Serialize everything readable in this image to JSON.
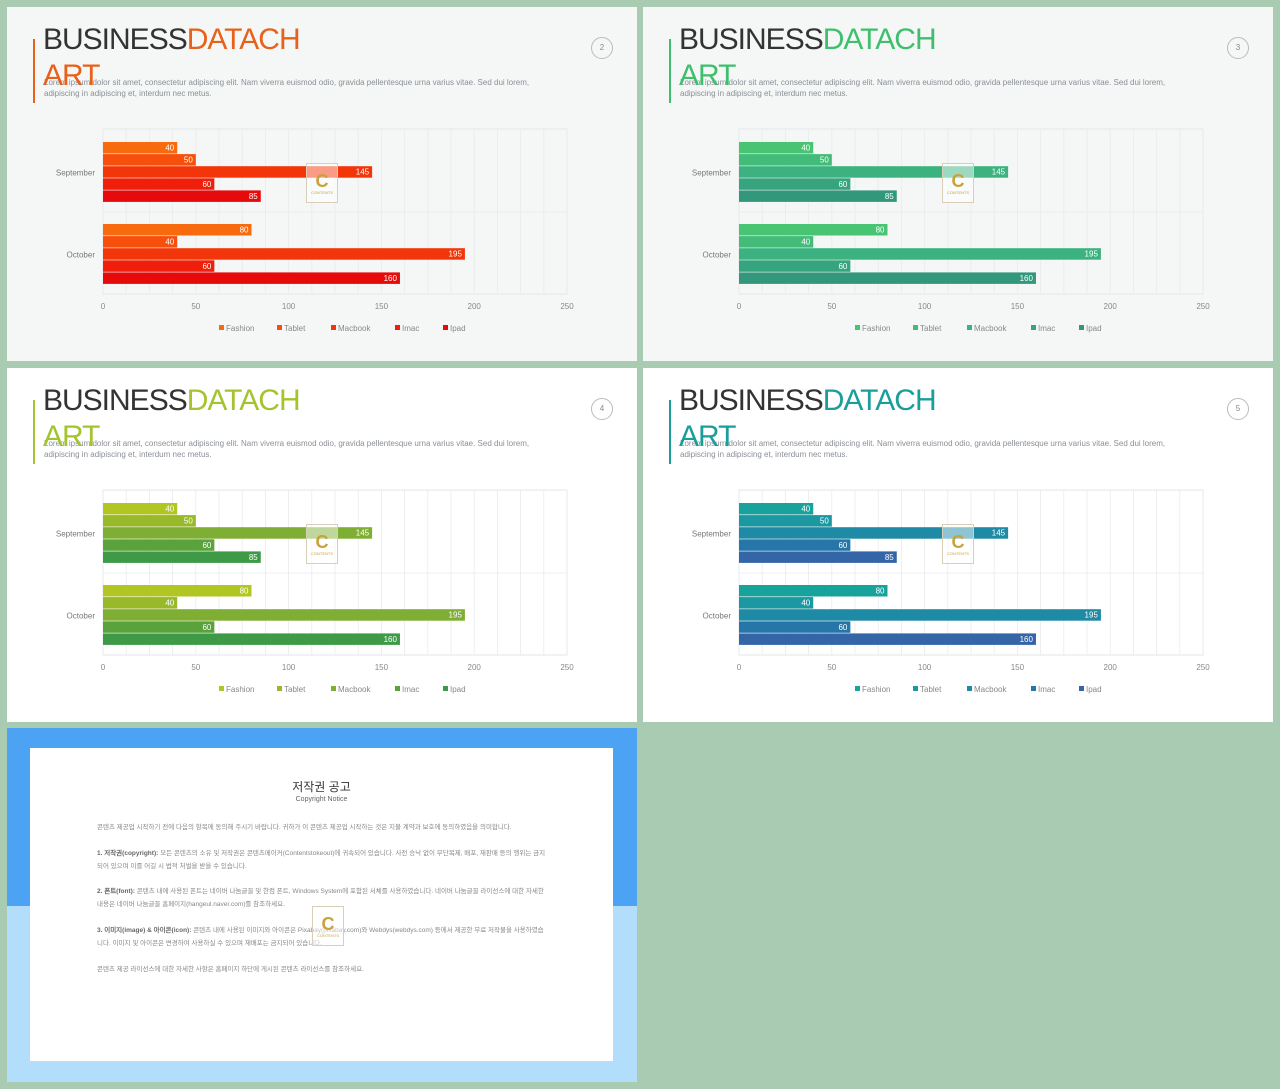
{
  "header_common": {
    "title_part1": "BUSINESS",
    "title_part2": "DATACH",
    "title_line2": "ART",
    "description": "Lorem ipsum dolor sit amet, consectetur adipiscing elit. Nam viverra euismod odio, gravida pellentesque urna varius vitae. Sed dui lorem, adipiscing in adipiscing et, interdum nec metus."
  },
  "watermark": {
    "letter": "C",
    "text": "CONTENTS"
  },
  "slides": [
    {
      "page": "2",
      "accent": "#e8611a",
      "colors": [
        "#f86a0e",
        "#f7500c",
        "#f2360a",
        "#f01f0b",
        "#e70a0a"
      ]
    },
    {
      "page": "3",
      "accent": "#3fbf6e",
      "colors": [
        "#49c472",
        "#43bc7a",
        "#3bb27f",
        "#36a57f",
        "#32977b"
      ]
    },
    {
      "page": "4",
      "accent": "#a3c42e",
      "colors": [
        "#b1c622",
        "#98b92a",
        "#7fae34",
        "#5aa23b",
        "#3e9a46"
      ]
    },
    {
      "page": "5",
      "accent": "#1a9e9a",
      "colors": [
        "#17a39c",
        "#1b98a1",
        "#1f8aa5",
        "#2776a9",
        "#3465a7"
      ]
    }
  ],
  "chart_data": {
    "type": "bar",
    "orientation": "horizontal",
    "categories": [
      "September",
      "October"
    ],
    "series": [
      {
        "name": "Fashion",
        "values": [
          40,
          80
        ]
      },
      {
        "name": "Tablet",
        "values": [
          50,
          40
        ]
      },
      {
        "name": "Macbook",
        "values": [
          145,
          195
        ]
      },
      {
        "name": "Imac",
        "values": [
          60,
          60
        ]
      },
      {
        "name": "Ipad",
        "values": [
          85,
          160
        ]
      }
    ],
    "xlim": [
      0,
      250
    ],
    "xticks": [
      "0",
      "50",
      "100",
      "150",
      "200",
      "250"
    ],
    "grid": true,
    "legend": "bottom"
  },
  "notice": {
    "title": "저작권 공고",
    "subtitle": "Copyright Notice",
    "intro": "콘텐츠 제공업 시작하기 전에 다음의 항목에 동의해 주시기 바랍니다. 귀하가 이 콘텐츠 제공업 시작하는 것은 지불 계약과 보호에 동의하였음을 의미합니다.",
    "p1_label": "1. 저작권(copyright):",
    "p1": "모든 콘텐츠의 소유 및 저작권은 콘텐츠메이커(Contentstokeout)에 귀속되어 있습니다. 사전 승낙 없이 무단복제, 배포, 재판매 등의 행위는 금지되어 있으며 이를 어길 시 법적 처벌을 받을 수 있습니다.",
    "p2_label": "2. 폰트(font):",
    "p2": "콘텐츠 내에 사용된 폰트는 네이버 나눔글꼴 및 한컴 폰트, Windows System에 포함된 서체를 사용하였습니다. 네이버 나눔글꼴 라이선스에 대한 자세한 내용은 네이버 나눔글꼴 홈페이지(hangeul.naver.com)를 참조하세요.",
    "p3_label": "3. 이미지(image) & 아이콘(icon):",
    "p3": "콘텐츠 내에 사용된 이미지와 아이콘은 Pixabay(pixabay.com)와 Webdys(webdys.com) 등에서 제공한 무료 저작물을 사용하였습니다. 이미지 및 아이콘은 변경하여 사용하실 수 있으며 재배포는 금지되어 있습니다.",
    "footer": "콘텐츠 제공 라이선스에 대한 자세한 사항은 홈페이지 하단에 게시된 콘텐츠 라이선스를 참조하세요."
  }
}
